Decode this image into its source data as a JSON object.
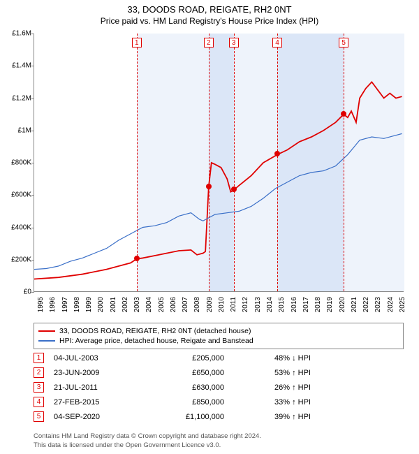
{
  "title": "33, DOODS ROAD, REIGATE, RH2 0NT",
  "subtitle": "Price paid vs. HM Land Registry's House Price Index (HPI)",
  "chart": {
    "x_start": 1995,
    "x_end": 2025.7,
    "y_start": 0,
    "y_end": 1600000,
    "y_ticks": [
      "£0",
      "£200K",
      "£400K",
      "£600K",
      "£800K",
      "£1M",
      "£1.2M",
      "£1.4M",
      "£1.6M"
    ],
    "x_ticks": [
      1995,
      1996,
      1997,
      1998,
      1999,
      2000,
      2001,
      2002,
      2003,
      2004,
      2005,
      2006,
      2007,
      2008,
      2009,
      2010,
      2011,
      2012,
      2013,
      2014,
      2015,
      2016,
      2017,
      2018,
      2019,
      2020,
      2021,
      2022,
      2023,
      2024,
      2025
    ],
    "bands": [
      {
        "from": 2003.5,
        "to": 2009.47,
        "color": "#eef3fb"
      },
      {
        "from": 2009.47,
        "to": 2011.55,
        "color": "#dbe6f7"
      },
      {
        "from": 2011.55,
        "to": 2015.16,
        "color": "#eef3fb"
      },
      {
        "from": 2015.16,
        "to": 2020.67,
        "color": "#dbe6f7"
      },
      {
        "from": 2020.67,
        "to": 2025.7,
        "color": "#eef3fb"
      }
    ],
    "series": [
      {
        "name": "33, DOODS ROAD, REIGATE, RH2 0NT (detached house)",
        "color": "#e00000",
        "width": 1.8,
        "points": [
          [
            1995,
            80000
          ],
          [
            1997,
            90000
          ],
          [
            1999,
            110000
          ],
          [
            2001,
            140000
          ],
          [
            2003,
            180000
          ],
          [
            2003.5,
            205000
          ],
          [
            2004,
            210000
          ],
          [
            2005,
            225000
          ],
          [
            2006,
            240000
          ],
          [
            2007,
            255000
          ],
          [
            2008,
            260000
          ],
          [
            2008.5,
            230000
          ],
          [
            2009,
            240000
          ],
          [
            2009.2,
            250000
          ],
          [
            2009.47,
            650000
          ],
          [
            2009.7,
            800000
          ],
          [
            2010,
            790000
          ],
          [
            2010.5,
            770000
          ],
          [
            2011,
            700000
          ],
          [
            2011.3,
            620000
          ],
          [
            2011.55,
            630000
          ],
          [
            2012,
            660000
          ],
          [
            2013,
            720000
          ],
          [
            2014,
            800000
          ],
          [
            2015.16,
            850000
          ],
          [
            2016,
            880000
          ],
          [
            2017,
            930000
          ],
          [
            2018,
            960000
          ],
          [
            2019,
            1000000
          ],
          [
            2020,
            1050000
          ],
          [
            2020.67,
            1100000
          ],
          [
            2021,
            1080000
          ],
          [
            2021.3,
            1120000
          ],
          [
            2021.7,
            1050000
          ],
          [
            2022,
            1200000
          ],
          [
            2022.5,
            1260000
          ],
          [
            2023,
            1300000
          ],
          [
            2023.5,
            1250000
          ],
          [
            2024,
            1200000
          ],
          [
            2024.5,
            1230000
          ],
          [
            2025,
            1200000
          ],
          [
            2025.5,
            1210000
          ]
        ]
      },
      {
        "name": "HPI: Average price, detached house, Reigate and Banstead",
        "color": "#3a6fc8",
        "width": 1.2,
        "points": [
          [
            1995,
            140000
          ],
          [
            1996,
            145000
          ],
          [
            1997,
            160000
          ],
          [
            1998,
            190000
          ],
          [
            1999,
            210000
          ],
          [
            2000,
            240000
          ],
          [
            2001,
            270000
          ],
          [
            2002,
            320000
          ],
          [
            2003,
            360000
          ],
          [
            2004,
            400000
          ],
          [
            2005,
            410000
          ],
          [
            2006,
            430000
          ],
          [
            2007,
            470000
          ],
          [
            2008,
            490000
          ],
          [
            2008.7,
            450000
          ],
          [
            2009,
            440000
          ],
          [
            2010,
            480000
          ],
          [
            2011,
            490000
          ],
          [
            2012,
            500000
          ],
          [
            2013,
            530000
          ],
          [
            2014,
            580000
          ],
          [
            2015,
            640000
          ],
          [
            2016,
            680000
          ],
          [
            2017,
            720000
          ],
          [
            2018,
            740000
          ],
          [
            2019,
            750000
          ],
          [
            2020,
            780000
          ],
          [
            2021,
            850000
          ],
          [
            2022,
            940000
          ],
          [
            2023,
            960000
          ],
          [
            2024,
            950000
          ],
          [
            2025,
            970000
          ],
          [
            2025.5,
            980000
          ]
        ]
      }
    ],
    "sale_markers": [
      {
        "n": "1",
        "x": 2003.5,
        "y": 205000
      },
      {
        "n": "2",
        "x": 2009.47,
        "y": 650000
      },
      {
        "n": "3",
        "x": 2011.55,
        "y": 630000
      },
      {
        "n": "4",
        "x": 2015.16,
        "y": 850000
      },
      {
        "n": "5",
        "x": 2020.67,
        "y": 1100000
      }
    ]
  },
  "legend": {
    "items": [
      {
        "color": "#e00000",
        "label": "33, DOODS ROAD, REIGATE, RH2 0NT (detached house)"
      },
      {
        "color": "#3a6fc8",
        "label": "HPI: Average price, detached house, Reigate and Banstead"
      }
    ]
  },
  "sales": [
    {
      "n": "1",
      "date": "04-JUL-2003",
      "price": "£205,000",
      "pct": "48% ↓ HPI"
    },
    {
      "n": "2",
      "date": "23-JUN-2009",
      "price": "£650,000",
      "pct": "53% ↑ HPI"
    },
    {
      "n": "3",
      "date": "21-JUL-2011",
      "price": "£630,000",
      "pct": "26% ↑ HPI"
    },
    {
      "n": "4",
      "date": "27-FEB-2015",
      "price": "£850,000",
      "pct": "33% ↑ HPI"
    },
    {
      "n": "5",
      "date": "04-SEP-2020",
      "price": "£1,100,000",
      "pct": "39% ↑ HPI"
    }
  ],
  "footer": {
    "line1": "Contains HM Land Registry data © Crown copyright and database right 2024.",
    "line2": "This data is licensed under the Open Government Licence v3.0."
  }
}
